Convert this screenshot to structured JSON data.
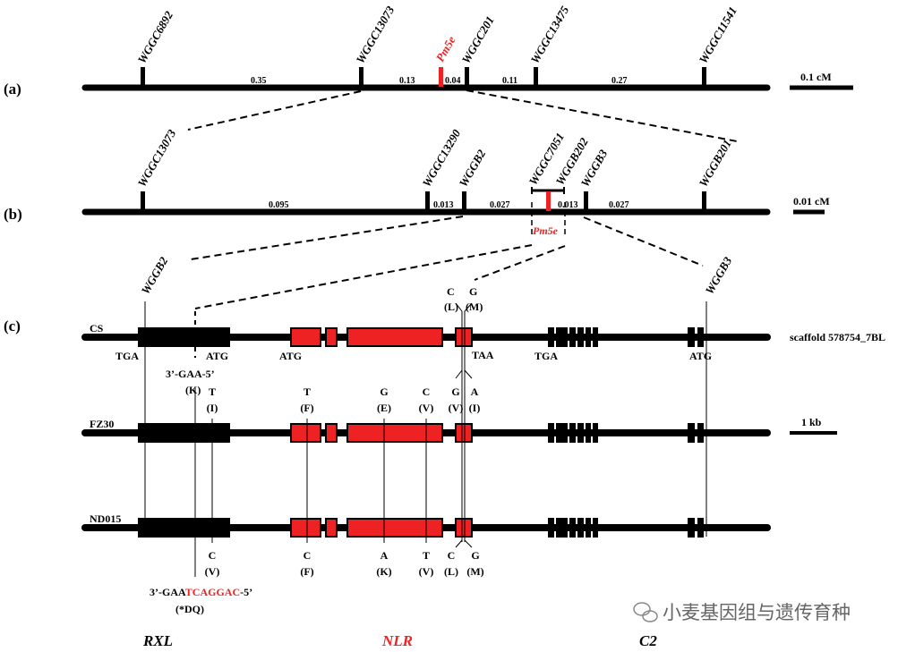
{
  "panels": {
    "a": "(a)",
    "b": "(b)",
    "c": "(c)"
  },
  "map_a": {
    "markers": [
      "WGGC6892",
      "WGGC13073",
      "WGGC201",
      "WGGC13475",
      "WGGC11541"
    ],
    "gene": "Pm5e",
    "distances": [
      "0.35",
      "0.13",
      "0.04",
      "0.11",
      "0.27"
    ],
    "scale": "0.1 cM"
  },
  "map_b": {
    "markers": [
      "WGGC13073",
      "WGGC13290",
      "WGGB2",
      "WGGC7051",
      "WGGB202",
      "WGGB3",
      "WGGB201"
    ],
    "gene": "Pm5e",
    "distances": [
      "0.095",
      "0.013",
      "0.027",
      "0.013",
      "0.027"
    ],
    "scale": "0.01 cM"
  },
  "map_c": {
    "markers": [
      "WGGB2",
      "WGGB3"
    ],
    "scaffold": "scaffold 578754_7BL",
    "scale": "1 kb",
    "lines": [
      "CS",
      "FZ30",
      "ND015"
    ],
    "cs_labels": {
      "tga1": "TGA",
      "atg1": "ATG",
      "atg2": "ATG",
      "taa": "TAA",
      "tga2": "TGA",
      "atg3": "ATG",
      "gaa": "3’-GAA-5’",
      "k": "(K)",
      "c1": "C",
      "l1": "(L)",
      "g1": "G",
      "m1": "(M)"
    },
    "fz_labels": [
      [
        "T",
        "(I)"
      ],
      [
        "T",
        "(F)"
      ],
      [
        "G",
        "(E)"
      ],
      [
        "C",
        "(V)"
      ],
      [
        "G",
        "(V)"
      ],
      [
        "A",
        "(I)"
      ]
    ],
    "nd_labels": [
      [
        "C",
        "(V)"
      ],
      [
        "C",
        "(F)"
      ],
      [
        "A",
        "(K)"
      ],
      [
        "T",
        "(V)"
      ],
      [
        "C",
        "(L)"
      ],
      [
        "G",
        "(M)"
      ]
    ],
    "nd_seq": {
      "prefix": "3’-GAA",
      "mut": "TCAGGAC",
      "suffix": "-5’",
      "aa": "(*DQ)"
    }
  },
  "genes": {
    "rxl": "RXL",
    "nlr": "NLR",
    "c2": "C2"
  },
  "watermark": "小麦基因组与遗传育种",
  "colors": {
    "red": "#ee2222",
    "black": "#000000"
  }
}
